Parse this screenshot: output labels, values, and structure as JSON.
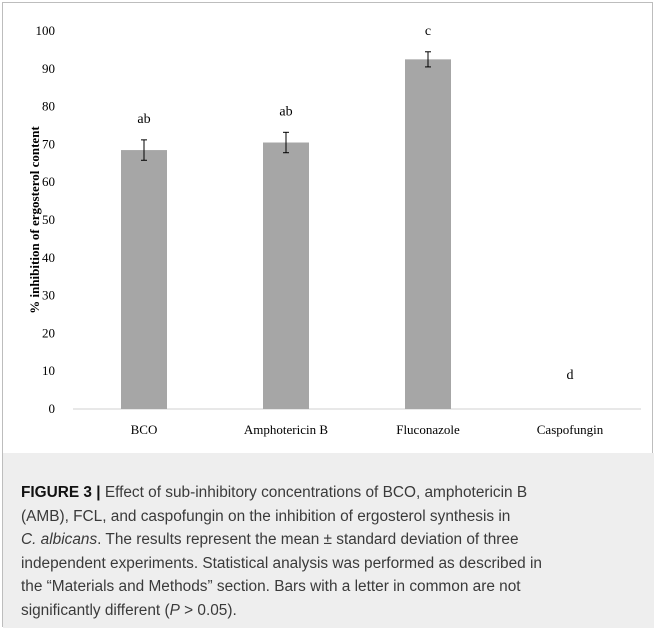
{
  "chart_data": {
    "type": "bar",
    "categories": [
      "BCO",
      "Amphotericin B",
      "Fluconazole",
      "Caspofungin"
    ],
    "values": [
      68.5,
      70.5,
      92.5,
      0
    ],
    "errors": [
      2.7,
      2.7,
      2.0,
      0
    ],
    "significance_letters": [
      "ab",
      "ab",
      "c",
      "d"
    ],
    "ylabel": "% inhibition of ergosterol content",
    "xlabel": "",
    "ylim": [
      0,
      100
    ],
    "yticks": [
      0,
      10,
      20,
      30,
      40,
      50,
      60,
      70,
      80,
      90,
      100
    ],
    "grid": false,
    "bar_color": "#a6a6a6"
  },
  "caption": {
    "figure_label": "FIGURE 3 |",
    "lines": [
      " Effect of sub-inhibitory concentrations of BCO, amphotericin B",
      "(AMB), FCL, and caspofungin on the inhibition of ergosterol synthesis in",
      "C. albicans. The results represent the mean ± standard deviation of three",
      "independent experiments. Statistical analysis was performed as described in",
      "the “Materials and Methods” section. Bars with a letter in common are not",
      "significantly different (P > 0.05)."
    ]
  }
}
